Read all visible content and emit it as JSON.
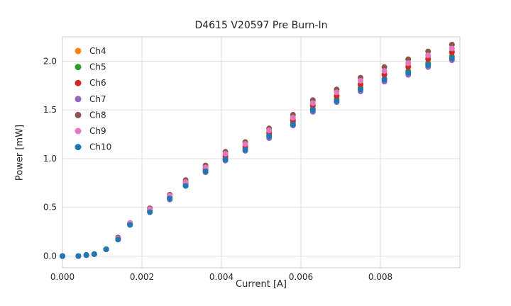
{
  "chart_data": {
    "type": "scatter",
    "title": "D4615 V20597 Pre Burn-In",
    "xlabel": "Current [A]",
    "ylabel": "Power [mW]",
    "xlim": [
      0.0,
      0.01
    ],
    "ylim": [
      -0.12,
      2.25
    ],
    "xticks": [
      0.0,
      0.002,
      0.004,
      0.006,
      0.008
    ],
    "xtick_labels": [
      "0.000",
      "0.002",
      "0.004",
      "0.006",
      "0.008"
    ],
    "yticks": [
      0.0,
      0.5,
      1.0,
      1.5,
      2.0
    ],
    "ytick_labels": [
      "0.0",
      "0.5",
      "1.0",
      "1.5",
      "2.0"
    ],
    "grid": true,
    "legend_position": "upper left",
    "grid_color": "#dddddd",
    "border_color": "#cccccc",
    "text_color": "#262626",
    "x": [
      0.0,
      0.0004,
      0.0006,
      0.0008,
      0.0011,
      0.0014,
      0.0017,
      0.0022,
      0.0027,
      0.0031,
      0.0036,
      0.0041,
      0.0046,
      0.0052,
      0.0058,
      0.0063,
      0.0069,
      0.0075,
      0.0081,
      0.0087,
      0.0092,
      0.0098
    ],
    "series": [
      {
        "name": "Ch4",
        "color": "#ff7f0e",
        "values": [
          0.0,
          0.0,
          0.01,
          0.02,
          0.07,
          0.18,
          0.33,
          0.47,
          0.61,
          0.75,
          0.9,
          1.03,
          1.13,
          1.27,
          1.4,
          1.55,
          1.65,
          1.77,
          1.87,
          1.95,
          2.03,
          2.1
        ]
      },
      {
        "name": "Ch5",
        "color": "#2ca02c",
        "values": [
          0.0,
          0.0,
          0.01,
          0.02,
          0.07,
          0.18,
          0.32,
          0.46,
          0.6,
          0.73,
          0.88,
          1.0,
          1.1,
          1.24,
          1.37,
          1.51,
          1.61,
          1.73,
          1.82,
          1.9,
          1.98,
          2.05
        ]
      },
      {
        "name": "Ch6",
        "color": "#d62728",
        "values": [
          0.0,
          0.0,
          0.01,
          0.02,
          0.07,
          0.18,
          0.33,
          0.47,
          0.61,
          0.75,
          0.9,
          1.02,
          1.12,
          1.26,
          1.39,
          1.54,
          1.64,
          1.76,
          1.86,
          1.94,
          2.02,
          2.09
        ]
      },
      {
        "name": "Ch7",
        "color": "#9467bd",
        "values": [
          0.0,
          0.0,
          0.01,
          0.02,
          0.07,
          0.17,
          0.32,
          0.45,
          0.58,
          0.72,
          0.86,
          0.98,
          1.08,
          1.21,
          1.34,
          1.48,
          1.58,
          1.69,
          1.79,
          1.86,
          1.94,
          2.01
        ]
      },
      {
        "name": "Ch8",
        "color": "#8c564b",
        "values": [
          0.0,
          0.0,
          0.01,
          0.02,
          0.07,
          0.19,
          0.34,
          0.49,
          0.63,
          0.78,
          0.93,
          1.07,
          1.17,
          1.31,
          1.45,
          1.6,
          1.71,
          1.83,
          1.94,
          2.02,
          2.1,
          2.17
        ]
      },
      {
        "name": "Ch9",
        "color": "#e377c2",
        "values": [
          0.0,
          0.0,
          0.01,
          0.02,
          0.07,
          0.18,
          0.34,
          0.48,
          0.62,
          0.76,
          0.91,
          1.05,
          1.15,
          1.29,
          1.42,
          1.57,
          1.68,
          1.8,
          1.9,
          1.98,
          2.06,
          2.13
        ]
      },
      {
        "name": "Ch10",
        "color": "#1f77b4",
        "values": [
          0.0,
          0.0,
          0.01,
          0.02,
          0.07,
          0.17,
          0.32,
          0.45,
          0.59,
          0.72,
          0.87,
          0.99,
          1.09,
          1.23,
          1.35,
          1.5,
          1.59,
          1.71,
          1.81,
          1.88,
          1.96,
          2.03
        ]
      }
    ]
  }
}
